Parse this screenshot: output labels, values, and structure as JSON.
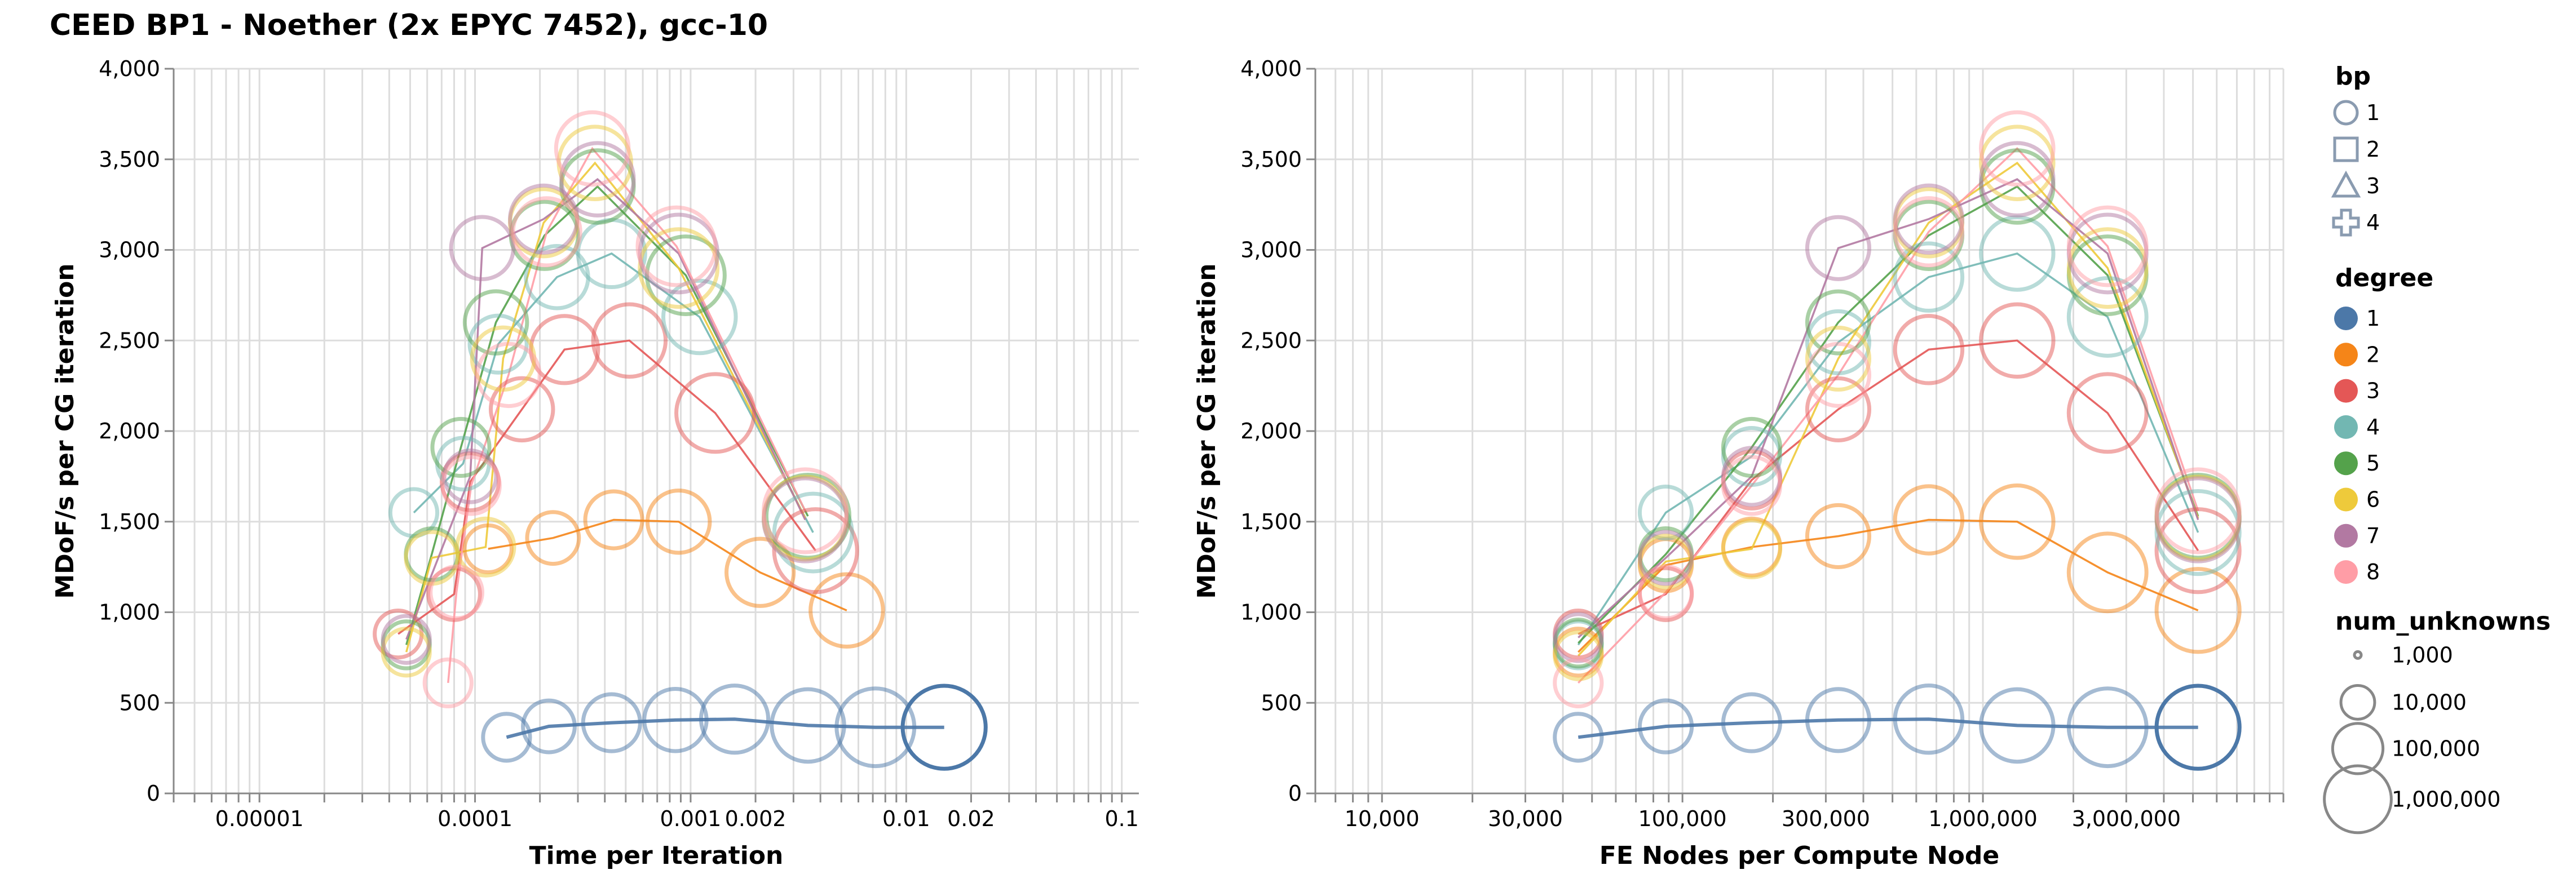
{
  "title": "CEED BP1 - Noether (2x EPYC 7452), gcc-10",
  "chart_data": [
    {
      "type": "scatter",
      "xlabel": "Time per Iteration",
      "ylabel": "MDoF/s per CG iteration",
      "x_scale": "log",
      "xlim": [
        4e-06,
        0.12
      ],
      "ylim": [
        0,
        4000
      ],
      "x_tick_labels": [
        "0.00001",
        "0.0001",
        "0.001",
        "0.002",
        "0.01",
        "0.02",
        "0.1"
      ],
      "x_tick_values": [
        1e-05,
        0.0001,
        0.001,
        0.002,
        0.01,
        0.02,
        0.1
      ],
      "y_tick_labels": [
        "0",
        "500",
        "1,000",
        "1,500",
        "2,000",
        "2,500",
        "3,000",
        "3,500",
        "4,000"
      ],
      "y_tick_values": [
        0,
        500,
        1000,
        1500,
        2000,
        2500,
        3000,
        3500,
        4000
      ],
      "grid": true,
      "series": [
        {
          "degree": 1,
          "bp": 1,
          "points": [
            {
              "x": 0.00014,
              "y": 310,
              "n": 45000
            },
            {
              "x": 0.00022,
              "y": 370,
              "n": 85000
            },
            {
              "x": 0.00043,
              "y": 390,
              "n": 170000
            },
            {
              "x": 0.00085,
              "y": 405,
              "n": 340000
            },
            {
              "x": 0.0016,
              "y": 410,
              "n": 650000
            },
            {
              "x": 0.0035,
              "y": 375,
              "n": 1300000
            },
            {
              "x": 0.0072,
              "y": 365,
              "n": 2600000
            },
            {
              "x": 0.015,
              "y": 365,
              "n": 5200000
            }
          ]
        },
        {
          "degree": 2,
          "bp": 1,
          "points": [
            {
              "x": 0.000115,
              "y": 1350,
              "n": 45000
            },
            {
              "x": 0.00023,
              "y": 1410,
              "n": 85000
            },
            {
              "x": 0.00044,
              "y": 1510,
              "n": 170000
            },
            {
              "x": 0.00088,
              "y": 1500,
              "n": 340000
            },
            {
              "x": 0.0021,
              "y": 1220,
              "n": 650000
            },
            {
              "x": 0.0053,
              "y": 1010,
              "n": 1300000
            }
          ]
        },
        {
          "degree": 3,
          "bp": 1,
          "points": [
            {
              "x": 4.4e-05,
              "y": 880,
              "n": 45000
            },
            {
              "x": 8e-05,
              "y": 1100,
              "n": 85000
            },
            {
              "x": 9.5e-05,
              "y": 1720,
              "n": 170000
            },
            {
              "x": 0.000165,
              "y": 2120,
              "n": 340000
            },
            {
              "x": 0.00026,
              "y": 2450,
              "n": 650000
            },
            {
              "x": 0.00052,
              "y": 2500,
              "n": 1300000
            },
            {
              "x": 0.0013,
              "y": 2100,
              "n": 2600000
            },
            {
              "x": 0.0038,
              "y": 1340,
              "n": 5200000
            }
          ]
        },
        {
          "degree": 4,
          "bp": 1,
          "points": [
            {
              "x": 5.2e-05,
              "y": 1550,
              "n": 45000
            },
            {
              "x": 8.8e-05,
              "y": 1820,
              "n": 85000
            },
            {
              "x": 0.000128,
              "y": 2480,
              "n": 170000
            },
            {
              "x": 0.00024,
              "y": 2850,
              "n": 340000
            },
            {
              "x": 0.00043,
              "y": 2980,
              "n": 650000
            },
            {
              "x": 0.0011,
              "y": 2630,
              "n": 1300000
            },
            {
              "x": 0.0037,
              "y": 1440,
              "n": 2600000
            }
          ]
        },
        {
          "degree": 5,
          "bp": 1,
          "points": [
            {
              "x": 4.8e-05,
              "y": 820,
              "n": 45000
            },
            {
              "x": 6.3e-05,
              "y": 1320,
              "n": 85000
            },
            {
              "x": 8.6e-05,
              "y": 1910,
              "n": 170000
            },
            {
              "x": 0.000125,
              "y": 2600,
              "n": 340000
            },
            {
              "x": 0.00021,
              "y": 3080,
              "n": 650000
            },
            {
              "x": 0.00037,
              "y": 3350,
              "n": 1300000
            },
            {
              "x": 0.00095,
              "y": 2860,
              "n": 2600000
            },
            {
              "x": 0.0035,
              "y": 1530,
              "n": 5200000
            }
          ]
        },
        {
          "degree": 6,
          "bp": 1,
          "points": [
            {
              "x": 4.8e-05,
              "y": 780,
              "n": 45000
            },
            {
              "x": 6.3e-05,
              "y": 1300,
              "n": 85000
            },
            {
              "x": 0.000112,
              "y": 1360,
              "n": 170000
            },
            {
              "x": 0.000135,
              "y": 2400,
              "n": 340000
            },
            {
              "x": 0.000208,
              "y": 3150,
              "n": 650000
            },
            {
              "x": 0.00036,
              "y": 3480,
              "n": 1300000
            },
            {
              "x": 0.00088,
              "y": 2900,
              "n": 2600000
            },
            {
              "x": 0.0034,
              "y": 1520,
              "n": 5200000
            }
          ]
        },
        {
          "degree": 7,
          "bp": 1,
          "points": [
            {
              "x": 4.8e-05,
              "y": 850,
              "n": 45000
            },
            {
              "x": 9.5e-05,
              "y": 1750,
              "n": 85000
            },
            {
              "x": 0.000108,
              "y": 3010,
              "n": 340000
            },
            {
              "x": 0.000208,
              "y": 3170,
              "n": 650000
            },
            {
              "x": 0.00037,
              "y": 3390,
              "n": 1300000
            },
            {
              "x": 0.00088,
              "y": 2980,
              "n": 2600000
            },
            {
              "x": 0.0034,
              "y": 1510,
              "n": 5200000
            }
          ]
        },
        {
          "degree": 8,
          "bp": 1,
          "points": [
            {
              "x": 7.5e-05,
              "y": 610,
              "n": 45000
            },
            {
              "x": 8.2e-05,
              "y": 1110,
              "n": 85000
            },
            {
              "x": 9.6e-05,
              "y": 1700,
              "n": 170000
            },
            {
              "x": 0.000143,
              "y": 2310,
              "n": 340000
            },
            {
              "x": 0.000215,
              "y": 3100,
              "n": 650000
            },
            {
              "x": 0.00035,
              "y": 3560,
              "n": 1300000
            },
            {
              "x": 0.00086,
              "y": 3020,
              "n": 2600000
            },
            {
              "x": 0.0034,
              "y": 1560,
              "n": 5200000
            }
          ]
        }
      ]
    },
    {
      "type": "scatter",
      "xlabel": "FE Nodes per Compute Node",
      "ylabel": "MDoF/s per CG iteration",
      "x_scale": "log",
      "xlim": [
        6000,
        10000000
      ],
      "ylim": [
        0,
        4000
      ],
      "x_tick_labels": [
        "10,000",
        "30,000",
        "100,000",
        "300,000",
        "1,000,000",
        "3,000,000"
      ],
      "x_tick_values": [
        10000,
        30000,
        100000,
        300000,
        1000000,
        3000000
      ],
      "y_tick_labels": [
        "0",
        "500",
        "1,000",
        "1,500",
        "2,000",
        "2,500",
        "3,000",
        "3,500",
        "4,000"
      ],
      "y_tick_values": [
        0,
        500,
        1000,
        1500,
        2000,
        2500,
        3000,
        3500,
        4000
      ],
      "grid": true,
      "series": [
        {
          "degree": 1,
          "bp": 1,
          "points": [
            {
              "x": 45000,
              "y": 310,
              "n": 45000
            },
            {
              "x": 88000,
              "y": 370,
              "n": 88000
            },
            {
              "x": 170000,
              "y": 390,
              "n": 170000
            },
            {
              "x": 330000,
              "y": 405,
              "n": 330000
            },
            {
              "x": 660000,
              "y": 410,
              "n": 660000
            },
            {
              "x": 1300000,
              "y": 375,
              "n": 1300000
            },
            {
              "x": 2600000,
              "y": 365,
              "n": 2600000
            },
            {
              "x": 5200000,
              "y": 365,
              "n": 5200000
            }
          ]
        },
        {
          "degree": 2,
          "bp": 1,
          "points": [
            {
              "x": 45000,
              "y": 780,
              "n": 45000
            },
            {
              "x": 88000,
              "y": 1260,
              "n": 88000
            },
            {
              "x": 170000,
              "y": 1360,
              "n": 170000
            },
            {
              "x": 330000,
              "y": 1420,
              "n": 330000
            },
            {
              "x": 660000,
              "y": 1510,
              "n": 660000
            },
            {
              "x": 1300000,
              "y": 1500,
              "n": 1300000
            },
            {
              "x": 2600000,
              "y": 1220,
              "n": 2600000
            },
            {
              "x": 5200000,
              "y": 1010,
              "n": 5200000
            }
          ]
        },
        {
          "degree": 3,
          "bp": 1,
          "points": [
            {
              "x": 45000,
              "y": 880,
              "n": 45000
            },
            {
              "x": 88000,
              "y": 1100,
              "n": 88000
            },
            {
              "x": 170000,
              "y": 1730,
              "n": 170000
            },
            {
              "x": 330000,
              "y": 2120,
              "n": 330000
            },
            {
              "x": 660000,
              "y": 2450,
              "n": 660000
            },
            {
              "x": 1300000,
              "y": 2500,
              "n": 1300000
            },
            {
              "x": 2600000,
              "y": 2100,
              "n": 2600000
            },
            {
              "x": 5200000,
              "y": 1340,
              "n": 5200000
            }
          ]
        },
        {
          "degree": 4,
          "bp": 1,
          "points": [
            {
              "x": 45000,
              "y": 820,
              "n": 45000
            },
            {
              "x": 88000,
              "y": 1550,
              "n": 88000
            },
            {
              "x": 170000,
              "y": 1860,
              "n": 170000
            },
            {
              "x": 330000,
              "y": 2490,
              "n": 330000
            },
            {
              "x": 660000,
              "y": 2850,
              "n": 660000
            },
            {
              "x": 1300000,
              "y": 2980,
              "n": 1300000
            },
            {
              "x": 2600000,
              "y": 2630,
              "n": 2600000
            },
            {
              "x": 5200000,
              "y": 1440,
              "n": 5200000
            }
          ]
        },
        {
          "degree": 5,
          "bp": 1,
          "points": [
            {
              "x": 45000,
              "y": 830,
              "n": 45000
            },
            {
              "x": 88000,
              "y": 1320,
              "n": 88000
            },
            {
              "x": 170000,
              "y": 1910,
              "n": 170000
            },
            {
              "x": 330000,
              "y": 2600,
              "n": 330000
            },
            {
              "x": 660000,
              "y": 3080,
              "n": 660000
            },
            {
              "x": 1300000,
              "y": 3350,
              "n": 1300000
            },
            {
              "x": 2600000,
              "y": 2860,
              "n": 2600000
            },
            {
              "x": 5200000,
              "y": 1530,
              "n": 5200000
            }
          ]
        },
        {
          "degree": 6,
          "bp": 1,
          "points": [
            {
              "x": 45000,
              "y": 760,
              "n": 45000
            },
            {
              "x": 88000,
              "y": 1280,
              "n": 88000
            },
            {
              "x": 170000,
              "y": 1350,
              "n": 170000
            },
            {
              "x": 330000,
              "y": 2400,
              "n": 330000
            },
            {
              "x": 660000,
              "y": 3150,
              "n": 660000
            },
            {
              "x": 1300000,
              "y": 3480,
              "n": 1300000
            },
            {
              "x": 2600000,
              "y": 2900,
              "n": 2600000
            },
            {
              "x": 5200000,
              "y": 1520,
              "n": 5200000
            }
          ]
        },
        {
          "degree": 7,
          "bp": 1,
          "points": [
            {
              "x": 45000,
              "y": 860,
              "n": 45000
            },
            {
              "x": 88000,
              "y": 1300,
              "n": 88000
            },
            {
              "x": 170000,
              "y": 1750,
              "n": 170000
            },
            {
              "x": 330000,
              "y": 3010,
              "n": 330000
            },
            {
              "x": 660000,
              "y": 3170,
              "n": 660000
            },
            {
              "x": 1300000,
              "y": 3390,
              "n": 1300000
            },
            {
              "x": 2600000,
              "y": 2980,
              "n": 2600000
            },
            {
              "x": 5200000,
              "y": 1510,
              "n": 5200000
            }
          ]
        },
        {
          "degree": 8,
          "bp": 1,
          "points": [
            {
              "x": 45000,
              "y": 610,
              "n": 45000
            },
            {
              "x": 88000,
              "y": 1110,
              "n": 88000
            },
            {
              "x": 170000,
              "y": 1700,
              "n": 170000
            },
            {
              "x": 330000,
              "y": 2310,
              "n": 330000
            },
            {
              "x": 660000,
              "y": 3100,
              "n": 660000
            },
            {
              "x": 1300000,
              "y": 3560,
              "n": 1300000
            },
            {
              "x": 2600000,
              "y": 3020,
              "n": 2600000
            },
            {
              "x": 5200000,
              "y": 1560,
              "n": 5200000
            }
          ]
        }
      ]
    }
  ],
  "legend": {
    "bp": {
      "title": "bp",
      "items": [
        {
          "label": "1",
          "shape": "circle"
        },
        {
          "label": "2",
          "shape": "square"
        },
        {
          "label": "3",
          "shape": "triangle"
        },
        {
          "label": "4",
          "shape": "cross"
        }
      ]
    },
    "degree": {
      "title": "degree",
      "items": [
        {
          "label": "1",
          "color": "#4c78a8"
        },
        {
          "label": "2",
          "color": "#f58518"
        },
        {
          "label": "3",
          "color": "#e45756"
        },
        {
          "label": "4",
          "color": "#72b7b2"
        },
        {
          "label": "5",
          "color": "#54a24b"
        },
        {
          "label": "6",
          "color": "#eeca3b"
        },
        {
          "label": "7",
          "color": "#b279a2"
        },
        {
          "label": "8",
          "color": "#ff9da6"
        }
      ]
    },
    "num_unknowns": {
      "title": "num_unknowns",
      "items": [
        {
          "label": "1,000",
          "value": 1000
        },
        {
          "label": "10,000",
          "value": 10000
        },
        {
          "label": "100,000",
          "value": 100000
        },
        {
          "label": "1,000,000",
          "value": 1000000
        }
      ]
    },
    "symbol_color": "#8a9bb0"
  }
}
